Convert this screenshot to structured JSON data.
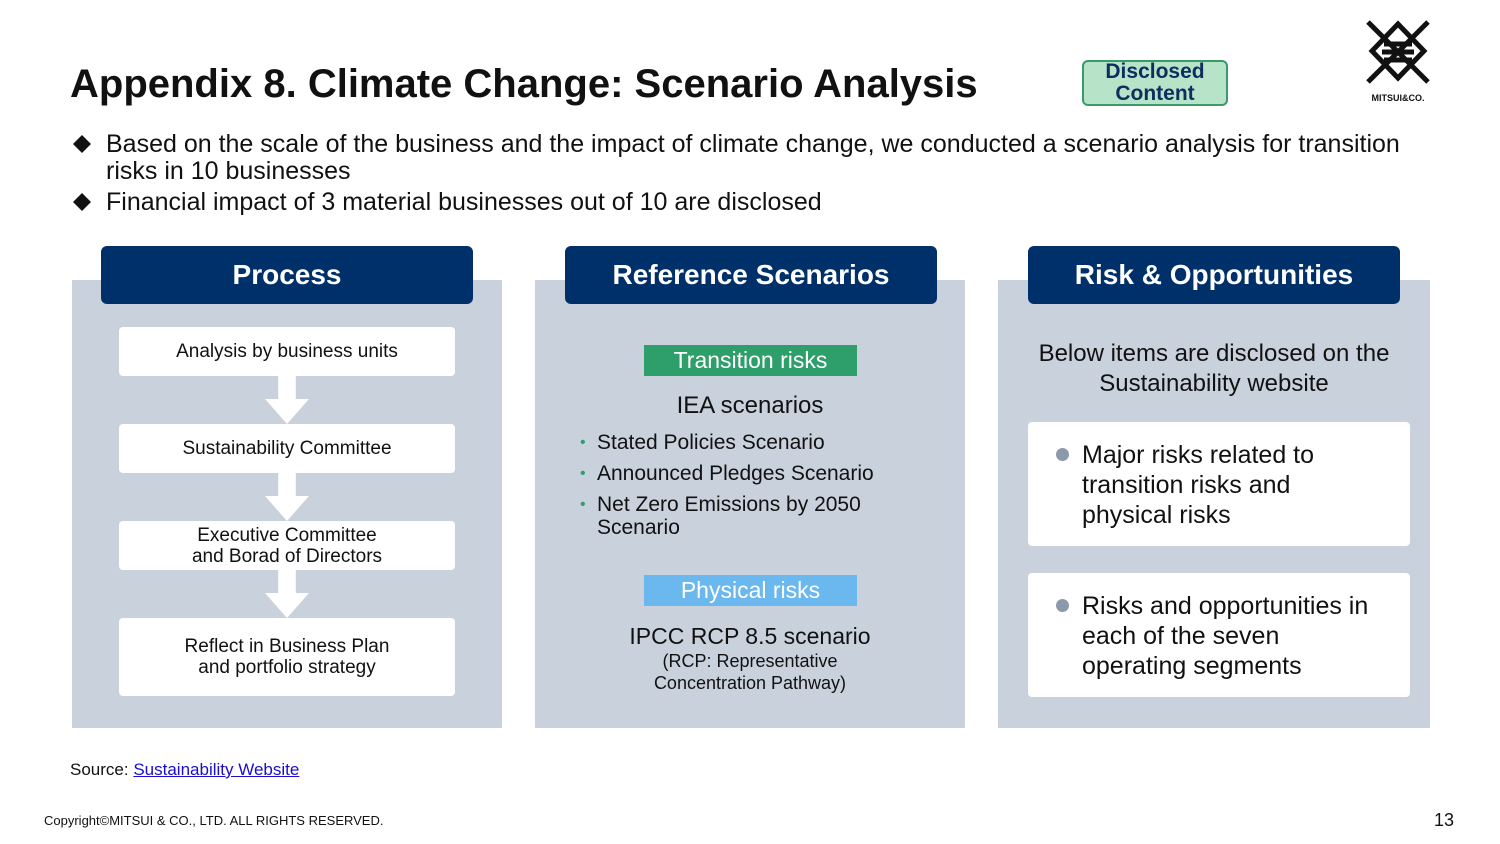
{
  "header": {
    "title": "Appendix 8. Climate Change: Scenario Analysis",
    "badge": "Disclosed Content",
    "logo_text": "MITSUI&CO."
  },
  "bullets": [
    "Based on the scale of the business and the impact of climate change, we conducted a scenario analysis for transition risks in 10 businesses",
    "Financial impact of 3 material businesses out of 10 are disclosed"
  ],
  "panels": {
    "process": {
      "title": "Process",
      "steps": [
        "Analysis by business units",
        "Sustainability Committee",
        "Executive Committee and Borad of Directors",
        "Reflect in Business Plan and portfolio strategy"
      ]
    },
    "scenarios": {
      "title": "Reference Scenarios",
      "transition": {
        "tag": "Transition risks",
        "heading": "IEA scenarios",
        "items": [
          "Stated Policies Scenario",
          "Announced Pledges Scenario",
          "Net Zero Emissions by 2050 Scenario"
        ]
      },
      "physical": {
        "tag": "Physical risks",
        "heading": "IPCC RCP 8.5 scenario",
        "note": "(RCP: Representative Concentration Pathway)"
      }
    },
    "risks": {
      "title": "Risk & Opportunities",
      "intro": "Below items are disclosed on the Sustainability website",
      "items": [
        "Major risks related to transition risks and physical risks",
        "Risks and opportunities in each of the seven operating segments"
      ]
    }
  },
  "footer": {
    "source_label": "Source:",
    "source_link": "Sustainability Website",
    "copyright": "Copyright©MITSUI & CO., LTD. ALL RIGHTS RESERVED.",
    "page": "13"
  }
}
